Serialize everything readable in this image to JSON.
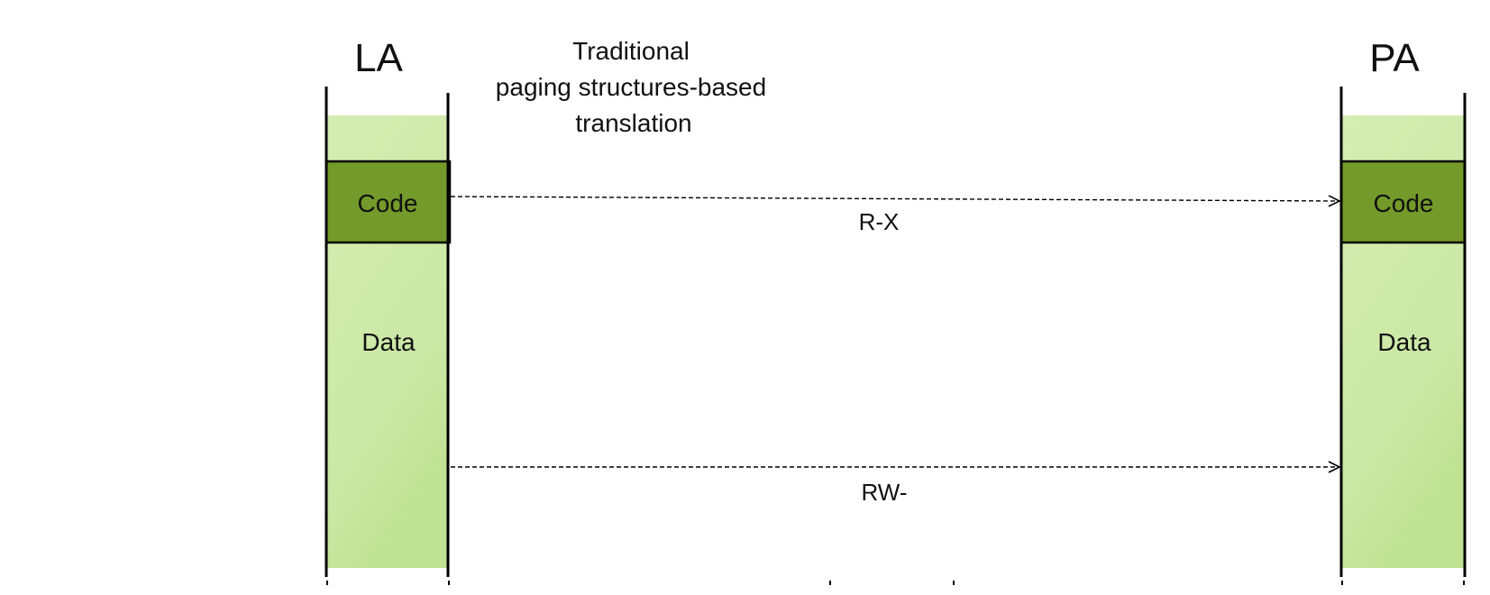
{
  "left_column": {
    "heading": "LA",
    "code_label": "Code",
    "data_label": "Data"
  },
  "right_column": {
    "heading": "PA",
    "code_label": "Code",
    "data_label": "Data"
  },
  "caption": {
    "line1": "Traditional",
    "line2": "paging structures-based",
    "line3": "translation"
  },
  "mappings": {
    "code_permission": "R-X",
    "data_permission": "RW-"
  },
  "colors": {
    "code_fill": "#739a2a",
    "region_fill_light": "#d4edb2",
    "region_fill_dark": "#bfe293",
    "line": "#000000"
  }
}
